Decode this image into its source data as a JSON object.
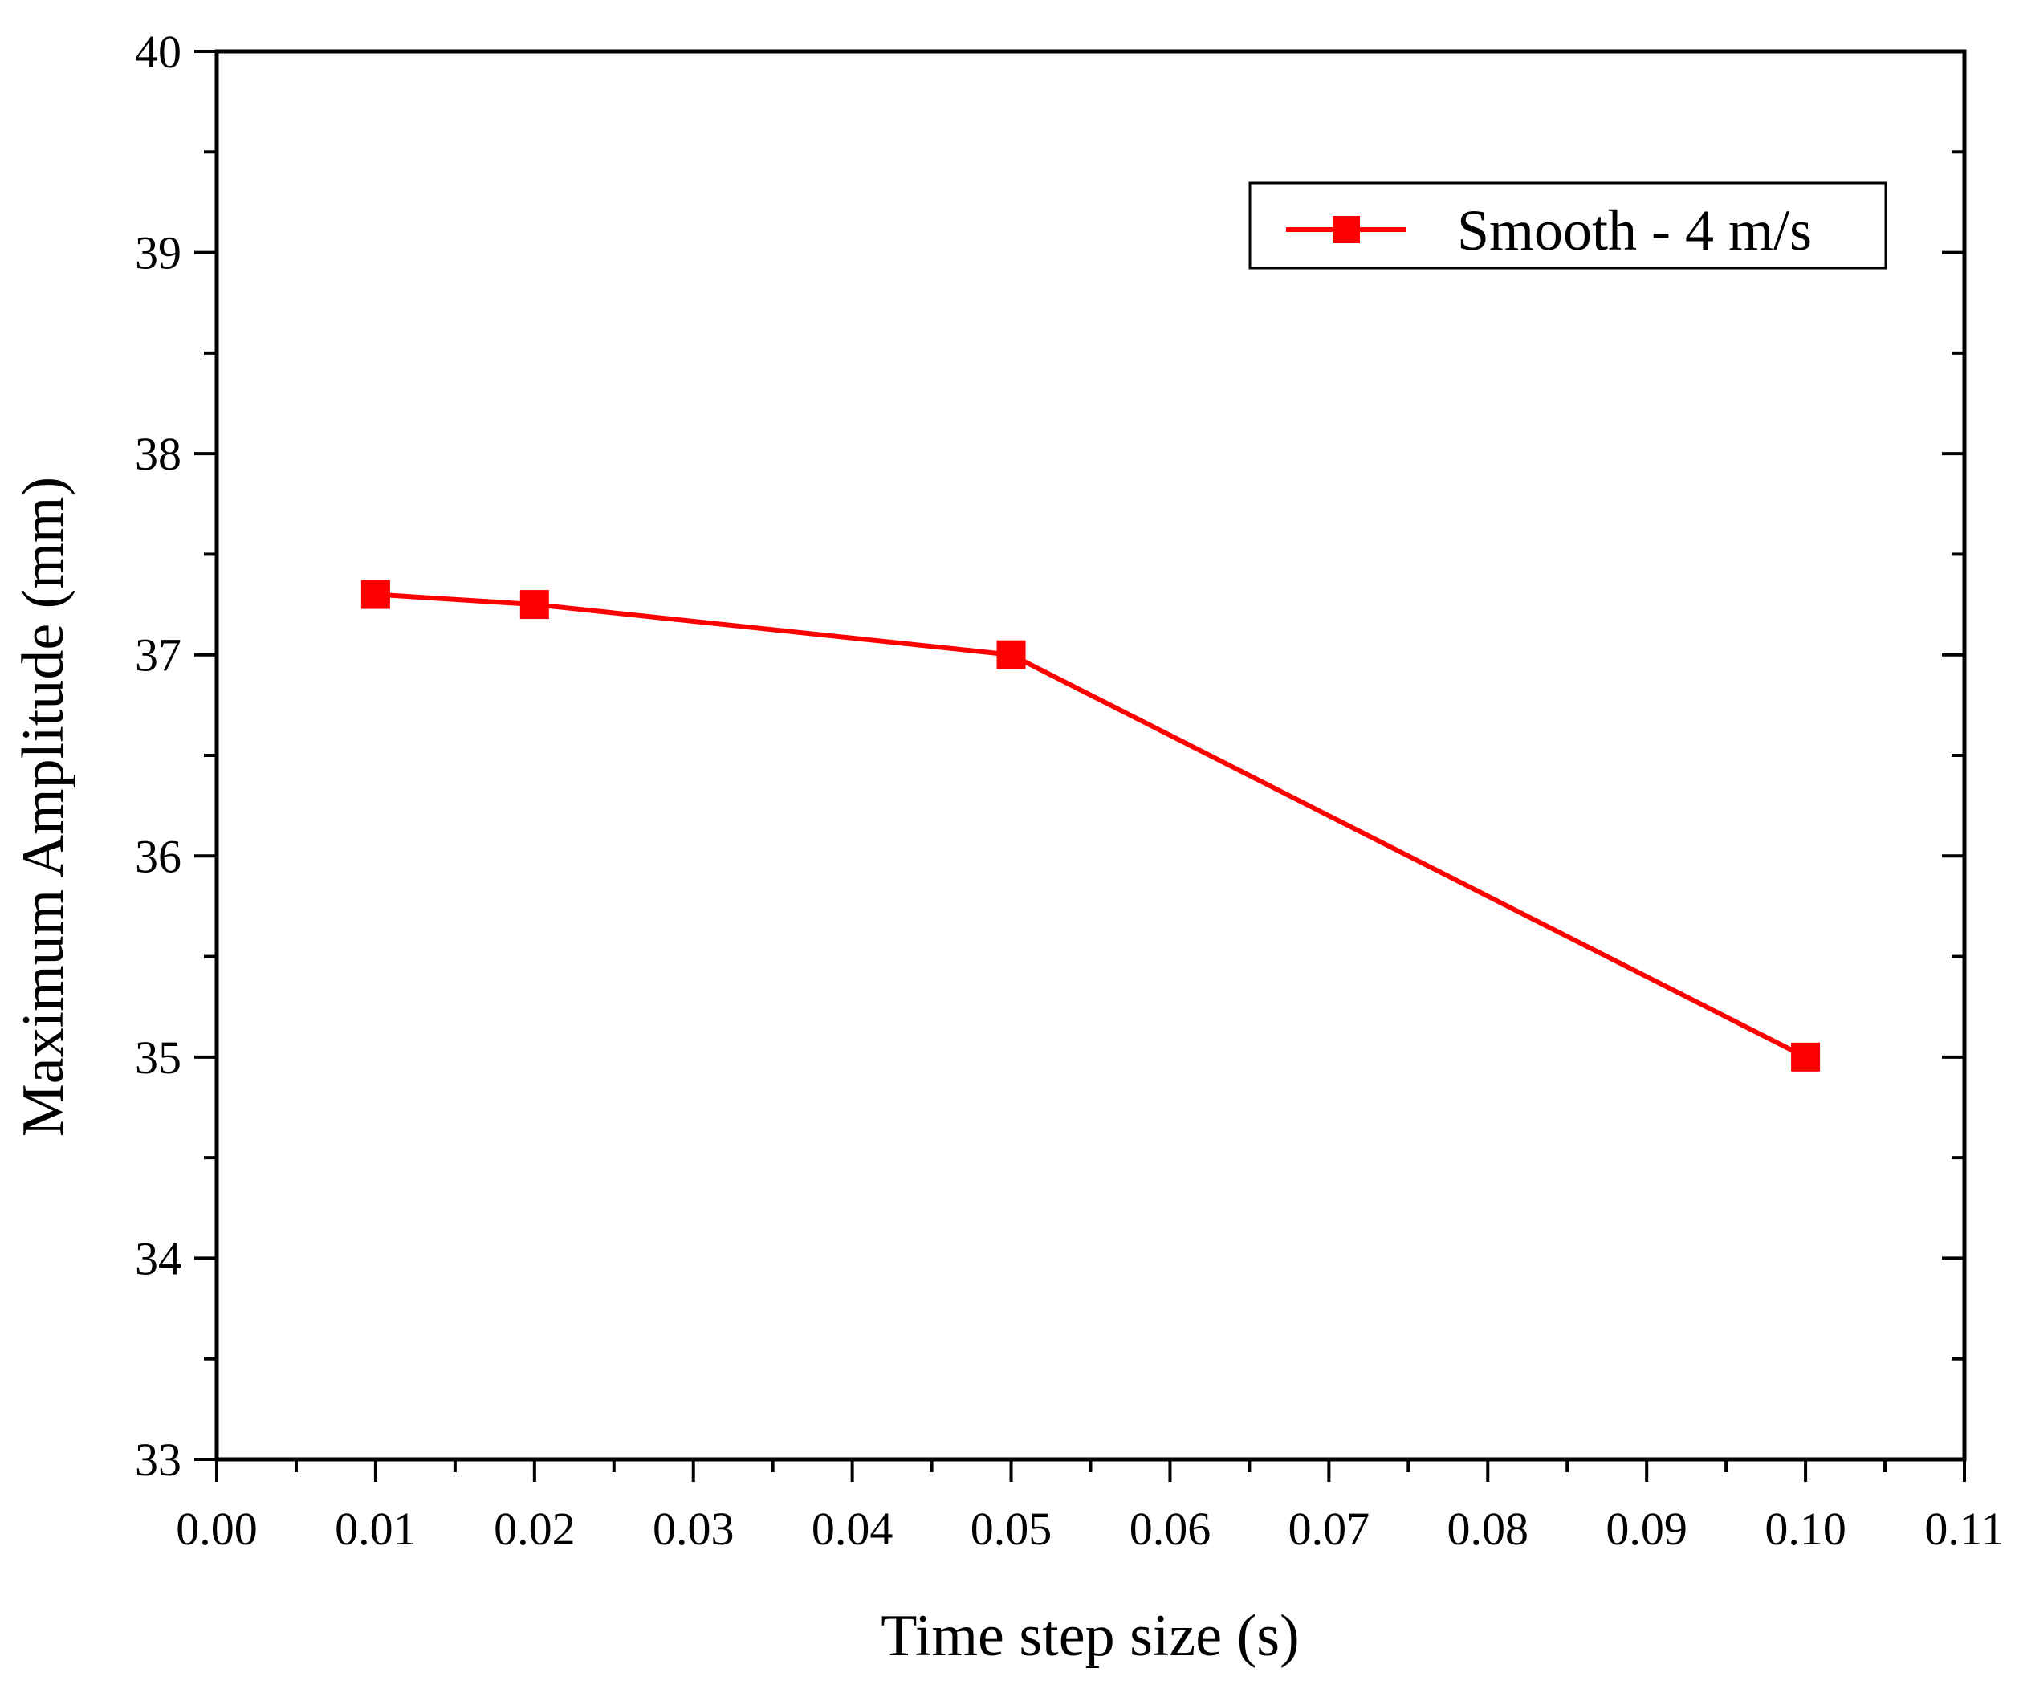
{
  "chart_data": {
    "type": "line",
    "title": "",
    "xlabel": "Time step size (s)",
    "ylabel": "Maximum Amplitude (mm)",
    "xlim": [
      0.0,
      0.11
    ],
    "ylim": [
      33,
      40
    ],
    "x_ticks": [
      "0.00",
      "0.01",
      "0.02",
      "0.03",
      "0.04",
      "0.05",
      "0.06",
      "0.07",
      "0.08",
      "0.09",
      "0.10",
      "0.11"
    ],
    "y_ticks": [
      "33",
      "34",
      "35",
      "36",
      "37",
      "38",
      "39",
      "40"
    ],
    "x_tick_values": [
      0.0,
      0.01,
      0.02,
      0.03,
      0.04,
      0.05,
      0.06,
      0.07,
      0.08,
      0.09,
      0.1,
      0.11
    ],
    "y_tick_values": [
      33,
      34,
      35,
      36,
      37,
      38,
      39,
      40
    ],
    "y_minor_step": 0.5,
    "grid": false,
    "legend_position": "top-right",
    "series": [
      {
        "name": "Smooth - 4 m/s",
        "color": "#ff0000",
        "marker": "square",
        "x": [
          0.01,
          0.02,
          0.05,
          0.1
        ],
        "y": [
          37.3,
          37.25,
          37.0,
          35.0
        ]
      }
    ]
  }
}
